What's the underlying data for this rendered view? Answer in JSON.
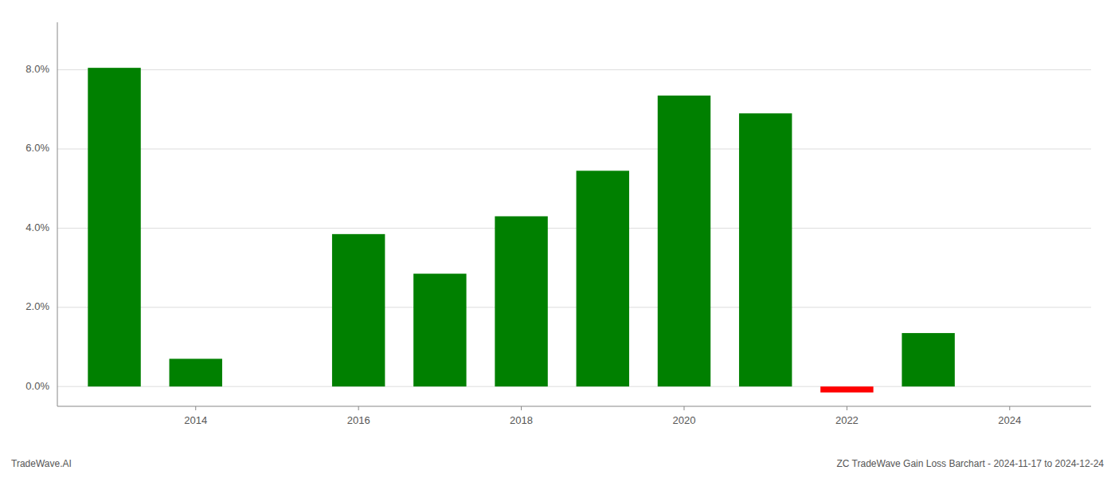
{
  "chart_data": {
    "type": "bar",
    "x": [
      2013,
      2014,
      2016,
      2017,
      2018,
      2019,
      2020,
      2021,
      2022,
      2023
    ],
    "values": [
      0.0805,
      0.007,
      0.0385,
      0.0285,
      0.043,
      0.0545,
      0.0735,
      0.069,
      -0.0015,
      0.0135
    ],
    "colors": [
      "#008000",
      "#008000",
      "#008000",
      "#008000",
      "#008000",
      "#008000",
      "#008000",
      "#008000",
      "#ff0000",
      "#008000"
    ],
    "xlim": [
      2012.3,
      2025.0
    ],
    "xticks": [
      2014,
      2016,
      2018,
      2020,
      2022,
      2024
    ],
    "ylim": [
      -0.005,
      0.092
    ],
    "yticks": [
      {
        "value": 0.0,
        "label": "0.0%"
      },
      {
        "value": 0.02,
        "label": "2.0%"
      },
      {
        "value": 0.04,
        "label": "4.0%"
      },
      {
        "value": 0.06,
        "label": "6.0%"
      },
      {
        "value": 0.08,
        "label": "8.0%"
      }
    ],
    "grid": true,
    "annotations": [
      "TradeWave.AI",
      "ZC TradeWave Gain Loss Barchart - 2024-11-17 to 2024-12-24"
    ]
  }
}
